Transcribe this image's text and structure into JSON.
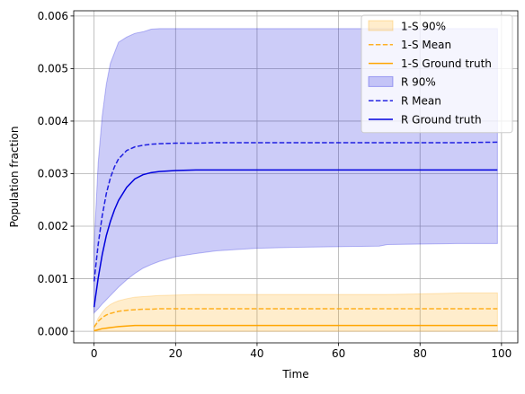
{
  "chart_data": {
    "type": "line",
    "xlabel": "Time",
    "ylabel": "Population fraction",
    "xlim": [
      -5,
      104
    ],
    "ylim": [
      -0.00022,
      0.0061
    ],
    "xticks": [
      0,
      20,
      40,
      60,
      80,
      100
    ],
    "xtick_labels": [
      "0",
      "20",
      "40",
      "60",
      "80",
      "100"
    ],
    "yticks": [
      0.0,
      0.001,
      0.002,
      0.003,
      0.004,
      0.005,
      0.006
    ],
    "ytick_labels": [
      "0.000",
      "0.001",
      "0.002",
      "0.003",
      "0.004",
      "0.005",
      "0.006"
    ],
    "grid": true,
    "legend_position": "top-right",
    "x": [
      0,
      1,
      2,
      3,
      4,
      5,
      6,
      8,
      10,
      12,
      14,
      16,
      20,
      25,
      30,
      40,
      50,
      60,
      70,
      72,
      80,
      90,
      99
    ],
    "series": [
      {
        "name": "1-S",
        "color": "#ffa500",
        "band_label": "1-S 90%",
        "mean_label": "1-S Mean",
        "truth_label": "1-S Ground truth",
        "band_lower": [
          0,
          0,
          0,
          0,
          0,
          0,
          0,
          0,
          0,
          0,
          0,
          0,
          0,
          0,
          0,
          0,
          0,
          0,
          0,
          0,
          0,
          0,
          0
        ],
        "band_upper": [
          8e-05,
          0.00025,
          0.00036,
          0.00045,
          0.00051,
          0.00055,
          0.00058,
          0.00062,
          0.00065,
          0.00066,
          0.00067,
          0.00068,
          0.00069,
          0.0007,
          0.0007,
          0.0007,
          0.0007,
          0.0007,
          0.0007,
          0.0007,
          0.00071,
          0.00073,
          0.00073
        ],
        "mean": [
          8e-05,
          0.00019,
          0.00026,
          0.00031,
          0.00034,
          0.00036,
          0.00038,
          0.0004,
          0.00041,
          0.00042,
          0.00042,
          0.00043,
          0.00043,
          0.00043,
          0.00043,
          0.00043,
          0.00043,
          0.00043,
          0.00043,
          0.00043,
          0.00043,
          0.00043,
          0.00043
        ],
        "truth": [
          1e-05,
          3e-05,
          5e-05,
          6e-05,
          7e-05,
          8e-05,
          9e-05,
          0.0001,
          0.00011,
          0.00011,
          0.00011,
          0.00011,
          0.00011,
          0.00011,
          0.00011,
          0.00011,
          0.00011,
          0.00011,
          0.00011,
          0.00011,
          0.00011,
          0.00011,
          0.00011
        ]
      },
      {
        "name": "R",
        "color": "#0000dd",
        "band_label": "R 90%",
        "mean_label": "R Mean",
        "truth_label": "R Ground truth",
        "band_lower": [
          0.00035,
          0.00043,
          0.00052,
          0.0006,
          0.00068,
          0.00076,
          0.00084,
          0.00098,
          0.0011,
          0.0012,
          0.00127,
          0.00133,
          0.00142,
          0.00148,
          0.00153,
          0.00158,
          0.0016,
          0.00161,
          0.00162,
          0.00165,
          0.00166,
          0.00167,
          0.00167
        ],
        "band_upper": [
          0.0016,
          0.0032,
          0.0041,
          0.0047,
          0.0051,
          0.0053,
          0.0055,
          0.0056,
          0.00567,
          0.0057,
          0.00575,
          0.00576,
          0.00576,
          0.00576,
          0.00576,
          0.00576,
          0.00576,
          0.00576,
          0.00576,
          0.00576,
          0.00576,
          0.00576,
          0.00576
        ],
        "mean": [
          0.00095,
          0.00165,
          0.0022,
          0.00262,
          0.00292,
          0.00313,
          0.00328,
          0.00344,
          0.00351,
          0.00354,
          0.00356,
          0.00357,
          0.00358,
          0.00358,
          0.00359,
          0.00359,
          0.00359,
          0.00359,
          0.00359,
          0.00359,
          0.00359,
          0.00359,
          0.0036
        ],
        "truth": [
          0.00046,
          0.00101,
          0.00146,
          0.00182,
          0.00209,
          0.00231,
          0.00249,
          0.00274,
          0.0029,
          0.00298,
          0.00302,
          0.00304,
          0.00306,
          0.00307,
          0.00307,
          0.00307,
          0.00307,
          0.00307,
          0.00307,
          0.00307,
          0.00307,
          0.00307,
          0.00307
        ]
      }
    ]
  }
}
